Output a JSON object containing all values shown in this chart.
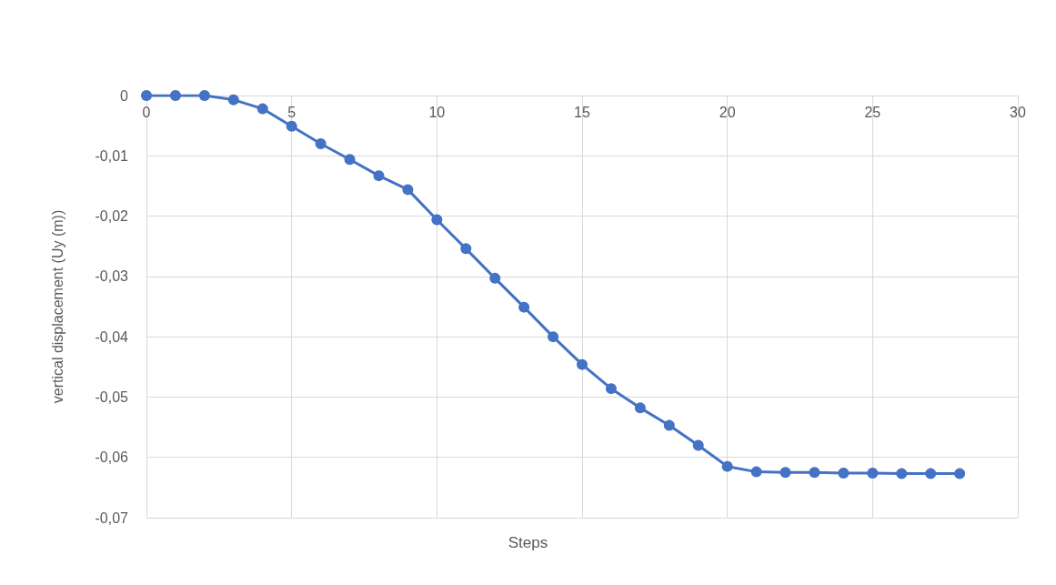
{
  "chart_data": {
    "type": "line",
    "xlabel": "Steps",
    "ylabel": "vertical displacement (Uy (m))",
    "x": [
      0,
      1,
      2,
      3,
      4,
      5,
      6,
      7,
      8,
      9,
      10,
      11,
      12,
      13,
      14,
      15,
      16,
      17,
      18,
      19,
      20,
      21,
      22,
      23,
      24,
      25,
      26,
      27,
      28
    ],
    "series": [
      {
        "color": "#4472c4",
        "values": [
          0,
          0,
          0,
          -0.0007,
          -0.0022,
          -0.0051,
          -0.008,
          -0.0106,
          -0.0133,
          -0.0156,
          -0.0206,
          -0.0254,
          -0.0303,
          -0.0351,
          -0.04,
          -0.0446,
          -0.0486,
          -0.0518,
          -0.0547,
          -0.058,
          -0.0615,
          -0.0624,
          -0.0625,
          -0.0625,
          -0.0626,
          -0.0626,
          -0.0627,
          -0.0627,
          -0.0627
        ]
      }
    ],
    "xlim": [
      0,
      30
    ],
    "xticks": [
      0,
      5,
      10,
      15,
      20,
      25,
      30
    ],
    "ylim": [
      -0.07,
      0
    ],
    "yticks": [
      {
        "value": 0,
        "label": "0"
      },
      {
        "value": -0.01,
        "label": "-0,01"
      },
      {
        "value": -0.02,
        "label": "-0,02"
      },
      {
        "value": -0.03,
        "label": "-0,03"
      },
      {
        "value": -0.04,
        "label": "-0,04"
      },
      {
        "value": -0.05,
        "label": "-0,05"
      },
      {
        "value": -0.06,
        "label": "-0,06"
      },
      {
        "value": -0.07,
        "label": "-0,07"
      }
    ],
    "grid": true,
    "marker": "circle",
    "line_style": "solid"
  }
}
